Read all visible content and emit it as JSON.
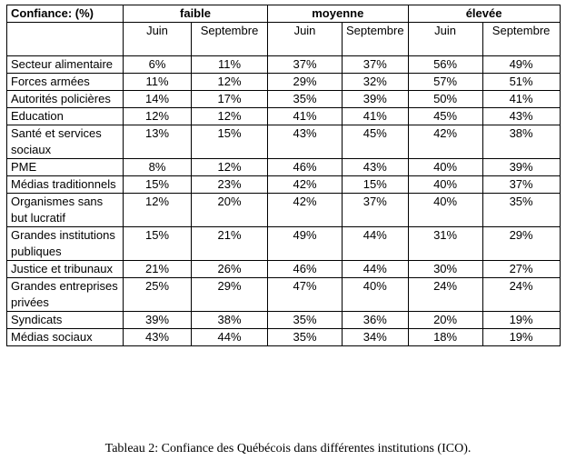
{
  "table": {
    "corner_header": "Confiance: (%)",
    "groups": [
      "faible",
      "moyenne",
      "élevée"
    ],
    "subheaders": [
      "Juin",
      "Septembre",
      "Juin",
      "Septembre",
      "Juin",
      "Septembre"
    ],
    "rows": [
      {
        "label": "Secteur alimentaire",
        "values": [
          "6%",
          "11%",
          "37%",
          "37%",
          "56%",
          "49%"
        ]
      },
      {
        "label": "Forces armées",
        "values": [
          "11%",
          "12%",
          "29%",
          "32%",
          "57%",
          "51%"
        ]
      },
      {
        "label": "Autorités policières",
        "values": [
          "14%",
          "17%",
          "35%",
          "39%",
          "50%",
          "41%"
        ]
      },
      {
        "label": "Education",
        "values": [
          "12%",
          "12%",
          "41%",
          "41%",
          "45%",
          "43%"
        ]
      },
      {
        "label": "Santé et services sociaux",
        "values": [
          "13%",
          "15%",
          "43%",
          "45%",
          "42%",
          "38%"
        ]
      },
      {
        "label": "PME",
        "values": [
          "8%",
          "12%",
          "46%",
          "43%",
          "40%",
          "39%"
        ]
      },
      {
        "label": "Médias traditionnels",
        "values": [
          "15%",
          "23%",
          "42%",
          "15%",
          "40%",
          "37%"
        ]
      },
      {
        "label": "Organismes sans but lucratif",
        "values": [
          "12%",
          "20%",
          "42%",
          "37%",
          "40%",
          "35%"
        ]
      },
      {
        "label": "Grandes institutions publiques",
        "values": [
          "15%",
          "21%",
          "49%",
          "44%",
          "31%",
          "29%"
        ]
      },
      {
        "label": "Justice et tribunaux",
        "values": [
          "21%",
          "26%",
          "46%",
          "44%",
          "30%",
          "27%"
        ]
      },
      {
        "label": "Grandes entreprises privées",
        "values": [
          "25%",
          "29%",
          "47%",
          "40%",
          "24%",
          "24%"
        ]
      },
      {
        "label": "Syndicats",
        "values": [
          "39%",
          "38%",
          "35%",
          "36%",
          "20%",
          "19%"
        ]
      },
      {
        "label": "Médias sociaux",
        "values": [
          "43%",
          "44%",
          "35%",
          "34%",
          "18%",
          "19%"
        ]
      }
    ]
  },
  "caption": "Tableau 2: Confiance des Québécois dans différentes institutions (ICO)."
}
